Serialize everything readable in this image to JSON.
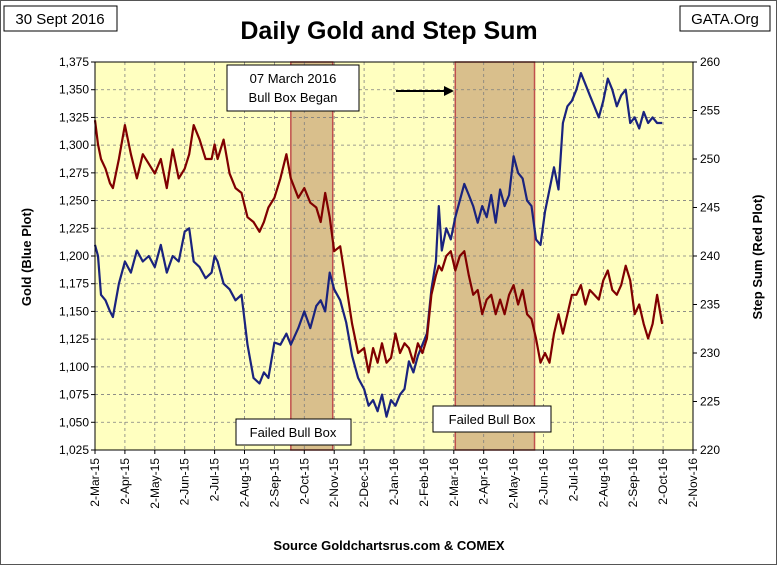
{
  "header": {
    "date_label": "30 Sept 2016",
    "site_label": "GATA.Org"
  },
  "chart_data": {
    "type": "line",
    "title": "Daily Gold and Step Sum",
    "xlabel": "",
    "ylabel_left": "Gold   (Blue Plot)",
    "ylabel_right": "Step Sum   (Red Plot)",
    "source": "Source Goldchartsrus.com & COMEX",
    "x_ticks": [
      "2-Mar-15",
      "2-Apr-15",
      "2-May-15",
      "2-Jun-15",
      "2-Jul-15",
      "2-Aug-15",
      "2-Sep-15",
      "2-Oct-15",
      "2-Nov-15",
      "2-Dec-15",
      "2-Jan-16",
      "2-Feb-16",
      "2-Mar-16",
      "2-Apr-16",
      "2-May-16",
      "2-Jun-16",
      "2-Jul-16",
      "2-Aug-16",
      "2-Sep-16",
      "2-Oct-16",
      "2-Nov-16"
    ],
    "y_left": {
      "min": 1025,
      "max": 1375,
      "step": 25,
      "tick_labels": [
        "1,025",
        "1,050",
        "1,075",
        "1,100",
        "1,125",
        "1,150",
        "1,175",
        "1,200",
        "1,225",
        "1,250",
        "1,275",
        "1,300",
        "1,325",
        "1,350",
        "1,375"
      ]
    },
    "y_right": {
      "min": 220,
      "max": 260,
      "step": 5,
      "tick_labels": [
        "220",
        "225",
        "230",
        "235",
        "240",
        "245",
        "250",
        "255",
        "260"
      ]
    },
    "colors": {
      "plot_bg": "#ffffc0",
      "gold": "#1a237e",
      "step_sum": "#800000",
      "box": "#d9bf8c",
      "box_border": "#c0504d",
      "grid": "#7f7f7f"
    },
    "boxes": [
      {
        "start_month": 6.55,
        "end_month": 7.95,
        "label": "Failed Bull Box"
      },
      {
        "start_month": 12.05,
        "end_month": 14.7,
        "label": "Failed Bull Box"
      }
    ],
    "annotation": {
      "text_line1": "07 March 2016",
      "text_line2": "Bull Box Began",
      "arrow": "right"
    },
    "series": [
      {
        "name": "Gold",
        "axis": "left",
        "color": "#1a237e",
        "points": [
          [
            0,
            1210
          ],
          [
            0.1,
            1200
          ],
          [
            0.2,
            1165
          ],
          [
            0.35,
            1160
          ],
          [
            0.5,
            1150
          ],
          [
            0.6,
            1145
          ],
          [
            0.8,
            1175
          ],
          [
            1.0,
            1195
          ],
          [
            1.2,
            1185
          ],
          [
            1.4,
            1205
          ],
          [
            1.6,
            1195
          ],
          [
            1.8,
            1200
          ],
          [
            2.0,
            1190
          ],
          [
            2.2,
            1210
          ],
          [
            2.4,
            1185
          ],
          [
            2.6,
            1200
          ],
          [
            2.8,
            1195
          ],
          [
            3.0,
            1222
          ],
          [
            3.15,
            1225
          ],
          [
            3.3,
            1195
          ],
          [
            3.5,
            1190
          ],
          [
            3.7,
            1180
          ],
          [
            3.9,
            1185
          ],
          [
            4.0,
            1200
          ],
          [
            4.1,
            1195
          ],
          [
            4.3,
            1175
          ],
          [
            4.5,
            1170
          ],
          [
            4.7,
            1160
          ],
          [
            4.9,
            1165
          ],
          [
            5.1,
            1120
          ],
          [
            5.3,
            1090
          ],
          [
            5.5,
            1085
          ],
          [
            5.65,
            1095
          ],
          [
            5.8,
            1090
          ],
          [
            6.0,
            1122
          ],
          [
            6.2,
            1120
          ],
          [
            6.4,
            1130
          ],
          [
            6.55,
            1120
          ],
          [
            6.8,
            1135
          ],
          [
            7.0,
            1150
          ],
          [
            7.2,
            1135
          ],
          [
            7.4,
            1155
          ],
          [
            7.55,
            1160
          ],
          [
            7.7,
            1150
          ],
          [
            7.85,
            1185
          ],
          [
            8.0,
            1170
          ],
          [
            8.2,
            1160
          ],
          [
            8.4,
            1140
          ],
          [
            8.6,
            1110
          ],
          [
            8.8,
            1090
          ],
          [
            9.0,
            1080
          ],
          [
            9.15,
            1065
          ],
          [
            9.3,
            1070
          ],
          [
            9.45,
            1060
          ],
          [
            9.6,
            1075
          ],
          [
            9.75,
            1055
          ],
          [
            9.9,
            1070
          ],
          [
            10.05,
            1065
          ],
          [
            10.2,
            1075
          ],
          [
            10.35,
            1080
          ],
          [
            10.5,
            1105
          ],
          [
            10.65,
            1095
          ],
          [
            10.8,
            1110
          ],
          [
            10.95,
            1120
          ],
          [
            11.1,
            1130
          ],
          [
            11.25,
            1170
          ],
          [
            11.4,
            1195
          ],
          [
            11.5,
            1245
          ],
          [
            11.6,
            1205
          ],
          [
            11.75,
            1225
          ],
          [
            11.9,
            1215
          ],
          [
            12.05,
            1235
          ],
          [
            12.2,
            1250
          ],
          [
            12.35,
            1265
          ],
          [
            12.5,
            1255
          ],
          [
            12.65,
            1245
          ],
          [
            12.8,
            1230
          ],
          [
            12.95,
            1245
          ],
          [
            13.1,
            1235
          ],
          [
            13.25,
            1255
          ],
          [
            13.4,
            1230
          ],
          [
            13.55,
            1260
          ],
          [
            13.7,
            1245
          ],
          [
            13.85,
            1255
          ],
          [
            14.0,
            1290
          ],
          [
            14.15,
            1275
          ],
          [
            14.3,
            1270
          ],
          [
            14.45,
            1250
          ],
          [
            14.6,
            1245
          ],
          [
            14.75,
            1215
          ],
          [
            14.9,
            1210
          ],
          [
            15.05,
            1240
          ],
          [
            15.2,
            1260
          ],
          [
            15.35,
            1280
          ],
          [
            15.5,
            1260
          ],
          [
            15.65,
            1320
          ],
          [
            15.8,
            1335
          ],
          [
            15.95,
            1340
          ],
          [
            16.1,
            1350
          ],
          [
            16.25,
            1365
          ],
          [
            16.4,
            1355
          ],
          [
            16.55,
            1345
          ],
          [
            16.7,
            1335
          ],
          [
            16.85,
            1325
          ],
          [
            17.0,
            1340
          ],
          [
            17.15,
            1360
          ],
          [
            17.3,
            1350
          ],
          [
            17.45,
            1335
          ],
          [
            17.6,
            1345
          ],
          [
            17.75,
            1350
          ],
          [
            17.9,
            1320
          ],
          [
            18.05,
            1325
          ],
          [
            18.2,
            1315
          ],
          [
            18.35,
            1330
          ],
          [
            18.5,
            1320
          ],
          [
            18.65,
            1325
          ],
          [
            18.8,
            1320
          ],
          [
            18.97,
            1320
          ]
        ]
      },
      {
        "name": "Step Sum",
        "axis": "right",
        "color": "#800000",
        "points": [
          [
            0,
            254
          ],
          [
            0.1,
            251.5
          ],
          [
            0.2,
            250
          ],
          [
            0.35,
            249
          ],
          [
            0.5,
            247.5
          ],
          [
            0.6,
            247
          ],
          [
            0.8,
            250
          ],
          [
            1.0,
            253.5
          ],
          [
            1.2,
            250.5
          ],
          [
            1.4,
            248
          ],
          [
            1.6,
            250.5
          ],
          [
            1.8,
            249.5
          ],
          [
            2.0,
            248.5
          ],
          [
            2.2,
            250
          ],
          [
            2.4,
            247
          ],
          [
            2.6,
            251
          ],
          [
            2.8,
            248
          ],
          [
            3.0,
            249
          ],
          [
            3.15,
            250.5
          ],
          [
            3.3,
            253.5
          ],
          [
            3.5,
            252
          ],
          [
            3.7,
            250
          ],
          [
            3.9,
            250
          ],
          [
            4.0,
            251.5
          ],
          [
            4.1,
            250
          ],
          [
            4.3,
            252
          ],
          [
            4.5,
            248.5
          ],
          [
            4.7,
            247
          ],
          [
            4.9,
            246.5
          ],
          [
            5.1,
            244
          ],
          [
            5.3,
            243.5
          ],
          [
            5.5,
            242.5
          ],
          [
            5.65,
            243.5
          ],
          [
            5.8,
            245
          ],
          [
            6.0,
            246
          ],
          [
            6.2,
            248
          ],
          [
            6.4,
            250.5
          ],
          [
            6.55,
            248
          ],
          [
            6.8,
            246
          ],
          [
            7.0,
            247
          ],
          [
            7.2,
            245.5
          ],
          [
            7.4,
            245
          ],
          [
            7.55,
            243.5
          ],
          [
            7.7,
            246.5
          ],
          [
            7.85,
            244
          ],
          [
            8.0,
            240.5
          ],
          [
            8.2,
            241
          ],
          [
            8.4,
            237
          ],
          [
            8.6,
            233
          ],
          [
            8.8,
            230
          ],
          [
            9.0,
            230.5
          ],
          [
            9.15,
            228
          ],
          [
            9.3,
            230.5
          ],
          [
            9.45,
            229
          ],
          [
            9.6,
            231
          ],
          [
            9.75,
            229
          ],
          [
            9.9,
            229.5
          ],
          [
            10.05,
            232
          ],
          [
            10.2,
            230
          ],
          [
            10.35,
            231
          ],
          [
            10.5,
            230.5
          ],
          [
            10.65,
            229
          ],
          [
            10.8,
            231
          ],
          [
            10.95,
            230
          ],
          [
            11.1,
            231.5
          ],
          [
            11.25,
            236
          ],
          [
            11.4,
            238
          ],
          [
            11.5,
            239
          ],
          [
            11.6,
            238.5
          ],
          [
            11.75,
            240
          ],
          [
            11.9,
            240.5
          ],
          [
            12.05,
            238.5
          ],
          [
            12.2,
            240
          ],
          [
            12.35,
            240.5
          ],
          [
            12.5,
            238
          ],
          [
            12.65,
            236
          ],
          [
            12.8,
            236.5
          ],
          [
            12.95,
            234
          ],
          [
            13.1,
            235.5
          ],
          [
            13.25,
            236
          ],
          [
            13.4,
            234
          ],
          [
            13.55,
            235.5
          ],
          [
            13.7,
            234
          ],
          [
            13.85,
            236
          ],
          [
            14.0,
            237
          ],
          [
            14.15,
            235
          ],
          [
            14.3,
            236.5
          ],
          [
            14.45,
            234
          ],
          [
            14.6,
            233.5
          ],
          [
            14.75,
            231.5
          ],
          [
            14.9,
            229
          ],
          [
            15.05,
            230
          ],
          [
            15.2,
            229
          ],
          [
            15.35,
            232
          ],
          [
            15.5,
            234
          ],
          [
            15.65,
            232
          ],
          [
            15.8,
            234
          ],
          [
            15.95,
            236
          ],
          [
            16.1,
            236
          ],
          [
            16.25,
            237
          ],
          [
            16.4,
            235
          ],
          [
            16.55,
            236.5
          ],
          [
            16.7,
            236
          ],
          [
            16.85,
            235.5
          ],
          [
            17.0,
            237.5
          ],
          [
            17.15,
            238.5
          ],
          [
            17.3,
            236.5
          ],
          [
            17.45,
            236
          ],
          [
            17.6,
            237
          ],
          [
            17.75,
            239
          ],
          [
            17.9,
            237.5
          ],
          [
            18.05,
            234
          ],
          [
            18.2,
            235
          ],
          [
            18.35,
            233
          ],
          [
            18.5,
            231.5
          ],
          [
            18.65,
            233
          ],
          [
            18.8,
            236
          ],
          [
            18.97,
            233
          ]
        ]
      }
    ]
  }
}
